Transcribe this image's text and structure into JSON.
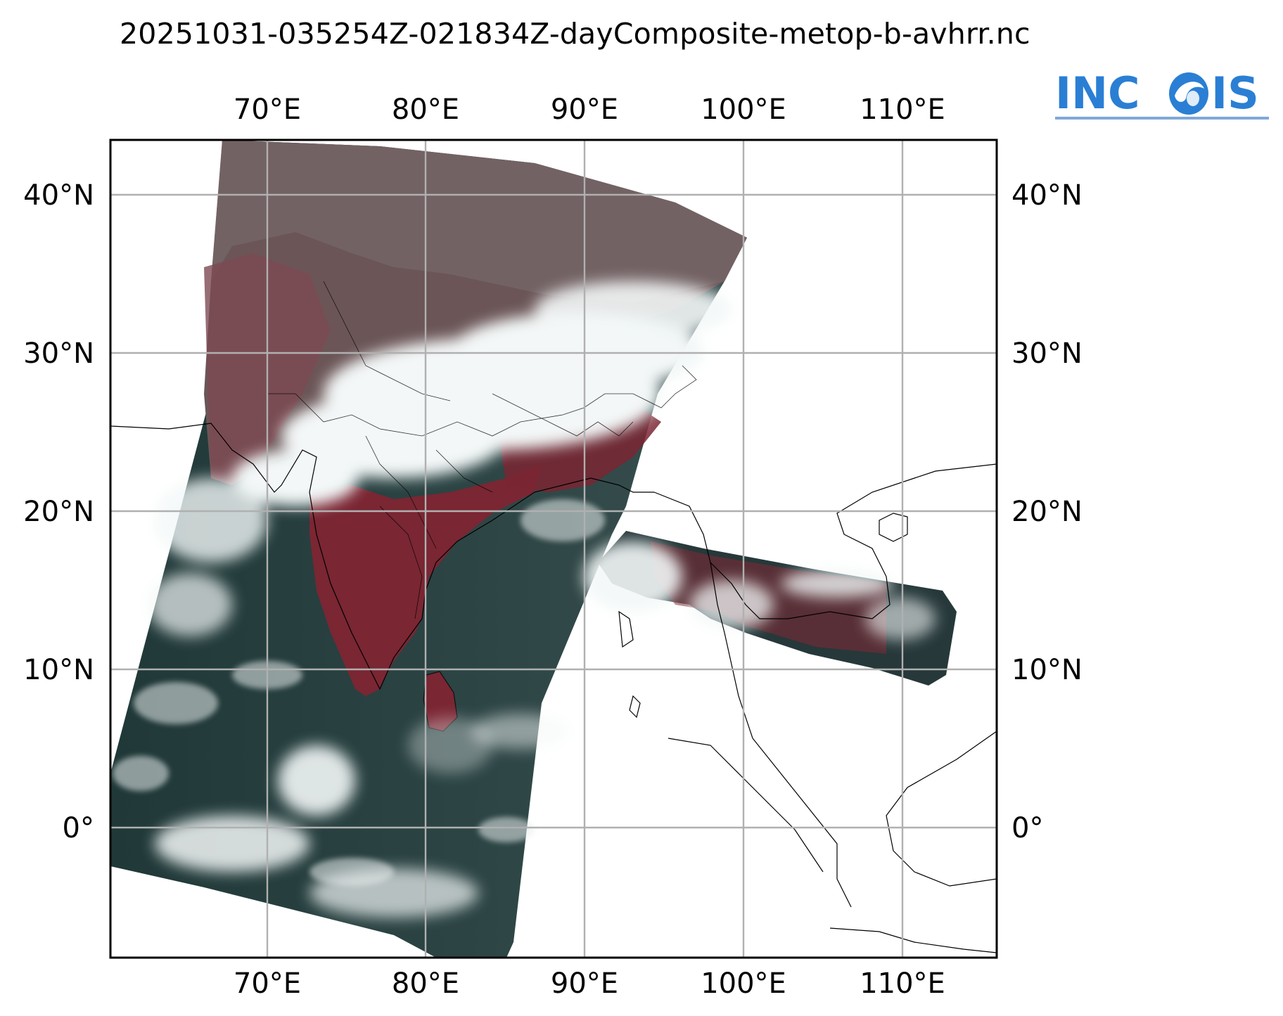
{
  "title": "20251031-035254Z-021834Z-dayComposite-metop-b-avhrr.nc",
  "logo": {
    "text_left": "INC",
    "text_right": "IS",
    "brand_color": "#2a7fd4",
    "icon": "wave-globe-icon"
  },
  "map": {
    "projection": "PlateCarree",
    "lon_range": [
      60,
      116
    ],
    "lat_range": [
      -8,
      43.5
    ],
    "gridlines": true,
    "lon_ticks": [
      {
        "value": 70,
        "label": "70°E"
      },
      {
        "value": 80,
        "label": "80°E"
      },
      {
        "value": 90,
        "label": "90°E"
      },
      {
        "value": 100,
        "label": "100°E"
      },
      {
        "value": 110,
        "label": "110°E"
      }
    ],
    "lat_ticks": [
      {
        "value": 40,
        "label": "40°N"
      },
      {
        "value": 30,
        "label": "30°N"
      },
      {
        "value": 20,
        "label": "20°N"
      },
      {
        "value": 10,
        "label": "10°N"
      },
      {
        "value": 0,
        "label": "0°"
      }
    ],
    "colors": {
      "ocean": "#1d3434",
      "land": "#7a2a34",
      "cloud": "#f2f6f6",
      "plateau": "#6a5a5c",
      "grid": "#b0b0b0"
    }
  }
}
